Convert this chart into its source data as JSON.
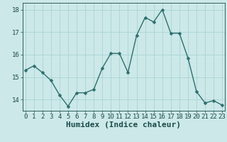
{
  "x": [
    0,
    1,
    2,
    3,
    4,
    5,
    6,
    7,
    8,
    9,
    10,
    11,
    12,
    13,
    14,
    15,
    16,
    17,
    18,
    19,
    20,
    21,
    22,
    23
  ],
  "y": [
    15.3,
    15.5,
    15.2,
    14.85,
    14.2,
    13.7,
    14.3,
    14.3,
    14.45,
    15.4,
    16.05,
    16.05,
    15.2,
    16.85,
    17.65,
    17.45,
    18.0,
    16.95,
    16.95,
    15.85,
    14.35,
    13.85,
    13.95,
    13.75
  ],
  "xlabel": "Humidex (Indice chaleur)",
  "ylim": [
    13.5,
    18.3
  ],
  "yticks": [
    14,
    15,
    16,
    17,
    18
  ],
  "xticks": [
    0,
    1,
    2,
    3,
    4,
    5,
    6,
    7,
    8,
    9,
    10,
    11,
    12,
    13,
    14,
    15,
    16,
    17,
    18,
    19,
    20,
    21,
    22,
    23
  ],
  "line_color": "#2e6e6e",
  "bg_color": "#cce8e8",
  "grid_color": "#aad4d4",
  "text_color": "#1a4a4a",
  "tick_fontsize": 6.5,
  "xlabel_fontsize": 8,
  "line_width": 1.0,
  "marker_size": 2.5
}
